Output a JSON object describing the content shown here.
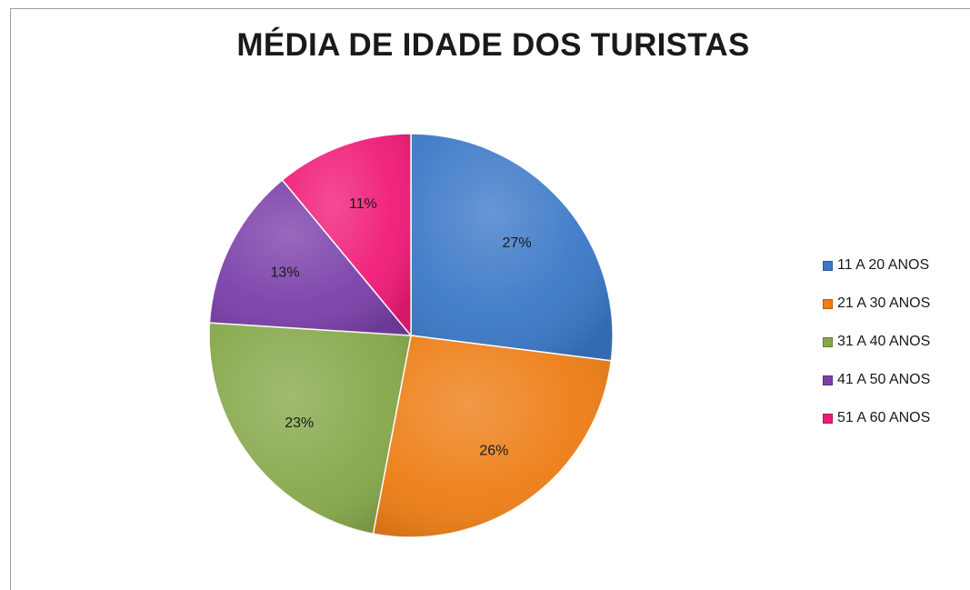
{
  "chart_data": {
    "type": "pie",
    "title": "MÉDIA DE IDADE DOS TURISTAS",
    "categories": [
      "11 A 20 ANOS",
      "21 A 30 ANOS",
      "31 A 40 ANOS",
      "41 A 50 ANOS",
      "51 A 60 ANOS"
    ],
    "values": [
      27,
      26,
      23,
      13,
      11
    ],
    "value_labels": [
      "27%",
      "26%",
      "23%",
      "13%",
      "11%"
    ],
    "colors": [
      "#3b78c7",
      "#ed7d14",
      "#86a84a",
      "#7a3fa9",
      "#f01a77"
    ],
    "legend_position": "right",
    "start_angle": "12 o'clock",
    "direction": "clockwise"
  }
}
